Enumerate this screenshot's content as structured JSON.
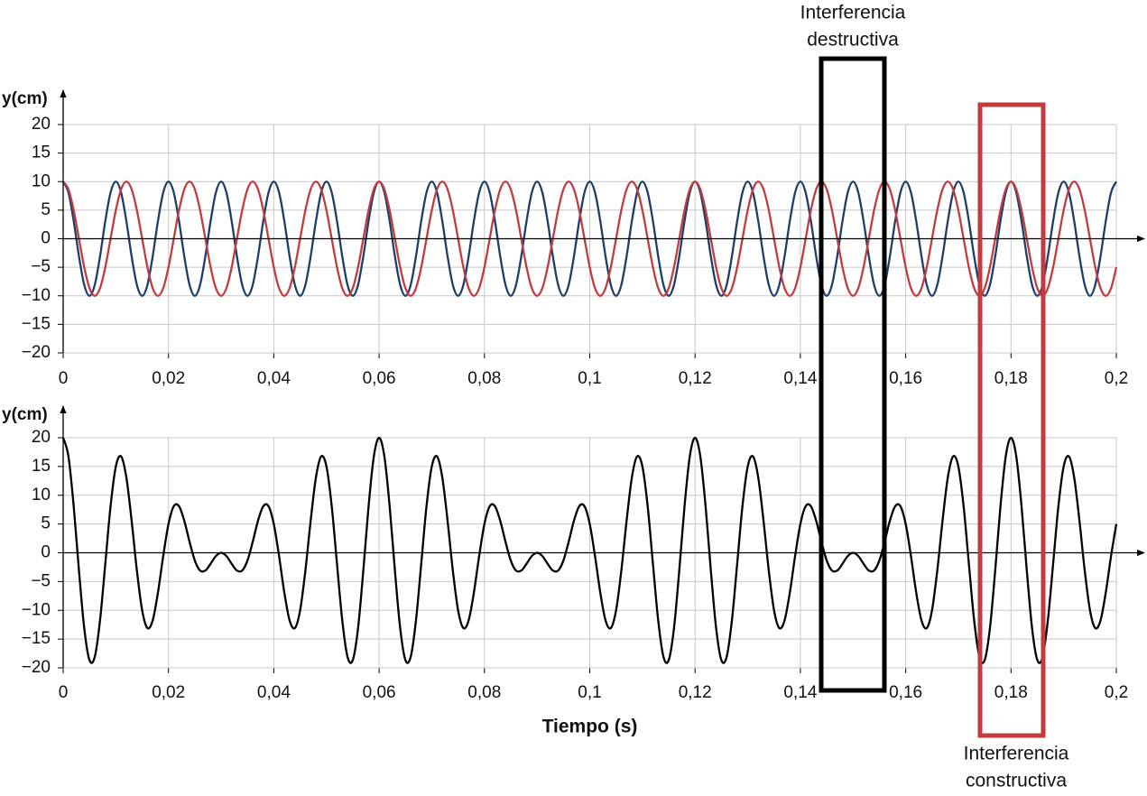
{
  "chart_data": [
    {
      "type": "line",
      "ylabel": "y(cm)",
      "x": [
        0,
        0.001,
        0.002,
        0.003,
        0.004,
        0.005,
        0.006,
        0.007,
        0.008,
        0.009,
        0.01,
        0.011,
        0.012,
        0.013,
        0.014,
        0.015,
        0.016,
        0.017,
        0.018,
        0.019,
        0.02,
        0.021,
        0.022,
        0.023,
        0.024,
        0.025,
        0.026,
        0.027,
        0.028,
        0.029,
        0.03,
        0.031,
        0.032,
        0.033,
        0.034,
        0.035,
        0.036,
        0.037,
        0.038,
        0.039,
        0.04,
        0.041,
        0.042,
        0.043,
        0.044,
        0.045,
        0.046,
        0.047,
        0.048,
        0.049,
        0.05,
        0.051,
        0.052,
        0.053,
        0.054,
        0.055,
        0.056,
        0.057,
        0.058,
        0.059,
        0.06,
        0.061,
        0.062,
        0.063,
        0.064,
        0.065,
        0.066,
        0.067,
        0.068,
        0.069,
        0.07,
        0.071,
        0.072,
        0.073,
        0.074,
        0.075,
        0.076,
        0.077,
        0.078,
        0.079,
        0.08,
        0.081,
        0.082,
        0.083,
        0.084,
        0.085,
        0.086,
        0.087,
        0.088,
        0.089,
        0.09,
        0.091,
        0.092,
        0.093,
        0.094,
        0.095,
        0.096,
        0.097,
        0.098,
        0.099,
        0.1,
        0.101,
        0.102,
        0.103,
        0.104,
        0.105,
        0.106,
        0.107,
        0.108,
        0.109,
        0.11,
        0.111,
        0.112,
        0.113,
        0.114,
        0.115,
        0.116,
        0.117,
        0.118,
        0.119,
        0.12,
        0.121,
        0.122,
        0.123,
        0.124,
        0.125,
        0.126,
        0.127,
        0.128,
        0.129,
        0.13,
        0.131,
        0.132,
        0.133,
        0.134,
        0.135,
        0.136,
        0.137,
        0.138,
        0.139,
        0.14,
        0.141,
        0.142,
        0.143,
        0.144,
        0.145,
        0.146,
        0.147,
        0.148,
        0.149,
        0.15,
        0.151,
        0.152,
        0.153,
        0.154,
        0.155,
        0.156,
        0.157,
        0.158,
        0.159,
        0.16,
        0.161,
        0.162,
        0.163,
        0.164,
        0.165,
        0.166,
        0.167,
        0.168,
        0.169,
        0.17,
        0.171,
        0.172,
        0.173,
        0.174,
        0.175,
        0.176,
        0.177,
        0.178,
        0.179,
        0.18,
        0.181,
        0.182,
        0.183,
        0.184,
        0.185,
        0.186,
        0.187,
        0.188,
        0.189,
        0.19,
        0.191,
        0.192,
        0.193,
        0.194,
        0.195,
        0.196,
        0.197,
        0.198,
        0.199,
        0.2
      ],
      "series": [
        {
          "color": "#1f3d6b",
          "values": [
            10,
            8.09,
            3.09,
            -3.09,
            -8.09,
            -10,
            -8.09,
            -3.09,
            3.09,
            8.09,
            10,
            8.09,
            3.09,
            -3.09,
            -8.09,
            -10,
            -8.09,
            -3.09,
            3.09,
            8.09,
            10,
            8.09,
            3.09,
            -3.09,
            -8.09,
            -10,
            -8.09,
            -3.09,
            3.09,
            8.09,
            10,
            8.09,
            3.09,
            -3.09,
            -8.09,
            -10,
            -8.09,
            -3.09,
            3.09,
            8.09,
            10,
            8.09,
            3.09,
            -3.09,
            -8.09,
            -10,
            -8.09,
            -3.09,
            3.09,
            8.09,
            10,
            8.09,
            3.09,
            -3.09,
            -8.09,
            -10,
            -8.09,
            -3.09,
            3.09,
            8.09,
            10,
            8.09,
            3.09,
            -3.09,
            -8.09,
            -10,
            -8.09,
            -3.09,
            3.09,
            8.09,
            10,
            8.09,
            3.09,
            -3.09,
            -8.09,
            -10,
            -8.09,
            -3.09,
            3.09,
            8.09,
            10,
            8.09,
            3.09,
            -3.09,
            -8.09,
            -10,
            -8.09,
            -3.09,
            3.09,
            8.09,
            10,
            8.09,
            3.09,
            -3.09,
            -8.09,
            -10,
            -8.09,
            -3.09,
            3.09,
            8.09,
            10,
            8.09,
            3.09,
            -3.09,
            -8.09,
            -10,
            -8.09,
            -3.09,
            3.09,
            8.09,
            10,
            8.09,
            3.09,
            -3.09,
            -8.09,
            -10,
            -8.09,
            -3.09,
            3.09,
            8.09,
            10,
            8.09,
            3.09,
            -3.09,
            -8.09,
            -10,
            -8.09,
            -3.09,
            3.09,
            8.09,
            10,
            8.09,
            3.09,
            -3.09,
            -8.09,
            -10,
            -8.09,
            -3.09,
            3.09,
            8.09,
            10,
            8.09,
            3.09,
            -3.09,
            -8.09,
            -10,
            -8.09,
            -3.09,
            3.09,
            8.09,
            10,
            8.09,
            3.09,
            -3.09,
            -8.09,
            -10,
            -8.09,
            -3.09,
            3.09,
            8.09,
            10,
            8.09,
            3.09,
            -3.09,
            -8.09,
            -10,
            -8.09,
            -3.09,
            3.09,
            8.09,
            10,
            8.09,
            3.09,
            -3.09,
            -8.09,
            -10,
            -8.09,
            -3.09,
            3.09,
            8.09,
            10,
            8.09,
            3.09,
            -3.09,
            -8.09,
            -10,
            -8.09,
            -3.09,
            3.09,
            8.09,
            10,
            8.09,
            3.09,
            -3.09,
            -8.09,
            -10,
            -8.09,
            -3.09,
            3.09,
            8.09,
            10
          ]
        },
        {
          "color": "#c23b3f",
          "values": [
            10,
            8.66,
            5,
            0,
            -5,
            -8.66,
            -10,
            -8.66,
            -5,
            0,
            5,
            8.66,
            10,
            8.66,
            5,
            0,
            -5,
            -8.66,
            -10,
            -8.66,
            -5,
            0,
            5,
            8.66,
            10,
            8.66,
            5,
            0,
            -5,
            -8.66,
            -10,
            -8.66,
            -5,
            0,
            5,
            8.66,
            10,
            8.66,
            5,
            0,
            -5,
            -8.66,
            -10,
            -8.66,
            -5,
            0,
            5,
            8.66,
            10,
            8.66,
            5,
            0,
            -5,
            -8.66,
            -10,
            -8.66,
            -5,
            0,
            5,
            8.66,
            10,
            8.66,
            5,
            0,
            -5,
            -8.66,
            -10,
            -8.66,
            -5,
            0,
            5,
            8.66,
            10,
            8.66,
            5,
            0,
            -5,
            -8.66,
            -10,
            -8.66,
            -5,
            0,
            5,
            8.66,
            10,
            8.66,
            5,
            0,
            -5,
            -8.66,
            -10,
            -8.66,
            -5,
            0,
            5,
            8.66,
            10,
            8.66,
            5,
            0,
            -5,
            -8.66,
            -10,
            -8.66,
            -5,
            0,
            5,
            8.66,
            10,
            8.66,
            5,
            0,
            -5,
            -8.66,
            -10,
            -8.66,
            -5,
            0,
            5,
            8.66,
            10,
            8.66,
            5,
            0,
            -5,
            -8.66,
            -10,
            -8.66,
            -5,
            0,
            5,
            8.66,
            10,
            8.66,
            5,
            0,
            -5,
            -8.66,
            -10,
            -8.66,
            -5,
            0,
            5,
            8.66,
            10,
            8.66,
            5,
            0,
            -5,
            -8.66,
            -10,
            -8.66,
            -5,
            0,
            5,
            8.66,
            10,
            8.66,
            5,
            0,
            -5,
            -8.66,
            -10,
            -8.66,
            -5,
            0,
            5,
            8.66,
            10,
            8.66,
            5,
            0,
            -5,
            -8.66,
            -10,
            -8.66,
            -5,
            0,
            5,
            8.66,
            10,
            8.66,
            5,
            0,
            -5,
            -8.66,
            -10,
            -8.66,
            -5,
            0,
            5,
            8.66,
            10,
            8.66,
            5,
            0,
            -5,
            -8.66,
            -10,
            -8.66,
            -5
          ]
        }
      ],
      "xlim": [
        0,
        0.2
      ],
      "ylim": [
        -20,
        20
      ],
      "grid": true,
      "xticks": [
        0,
        {
          "value": 0.02,
          "label": "0,02"
        },
        {
          "value": 0.04,
          "label": "0,04"
        },
        {
          "value": 0.06,
          "label": "0,06"
        },
        {
          "value": 0.08,
          "label": "0,08"
        },
        {
          "value": 0.1,
          "label": "0,1"
        },
        {
          "value": 0.12,
          "label": "0,12"
        },
        {
          "value": 0.14,
          "label": "0,14"
        },
        {
          "value": 0.16,
          "label": "0,16"
        },
        {
          "value": 0.18,
          "label": "0,18"
        },
        {
          "value": 0.2,
          "label": "0,2"
        }
      ],
      "yticks": [
        {
          "value": -20,
          "label": "−20"
        },
        {
          "value": -15,
          "label": "−15"
        },
        {
          "value": -10,
          "label": "−10"
        },
        {
          "value": -5,
          "label": "−5"
        },
        0,
        5,
        10,
        15,
        20
      ]
    },
    {
      "type": "line",
      "ylabel": "y(cm)",
      "xlabel": "Tiempo (s)",
      "x": [
        0,
        0.001,
        0.002,
        0.003,
        0.004,
        0.005,
        0.006,
        0.007,
        0.008,
        0.009,
        0.01,
        0.011,
        0.012,
        0.013,
        0.014,
        0.015,
        0.016,
        0.017,
        0.018,
        0.019,
        0.02,
        0.021,
        0.022,
        0.023,
        0.024,
        0.025,
        0.026,
        0.027,
        0.028,
        0.029,
        0.03,
        0.031,
        0.032,
        0.033,
        0.034,
        0.035,
        0.036,
        0.037,
        0.038,
        0.039,
        0.04,
        0.041,
        0.042,
        0.043,
        0.044,
        0.045,
        0.046,
        0.047,
        0.048,
        0.049,
        0.05,
        0.051,
        0.052,
        0.053,
        0.054,
        0.055,
        0.056,
        0.057,
        0.058,
        0.059,
        0.06,
        0.061,
        0.062,
        0.063,
        0.064,
        0.065,
        0.066,
        0.067,
        0.068,
        0.069,
        0.07,
        0.071,
        0.072,
        0.073,
        0.074,
        0.075,
        0.076,
        0.077,
        0.078,
        0.079,
        0.08,
        0.081,
        0.082,
        0.083,
        0.084,
        0.085,
        0.086,
        0.087,
        0.088,
        0.089,
        0.09,
        0.091,
        0.092,
        0.093,
        0.094,
        0.095,
        0.096,
        0.097,
        0.098,
        0.099,
        0.1,
        0.101,
        0.102,
        0.103,
        0.104,
        0.105,
        0.106,
        0.107,
        0.108,
        0.109,
        0.11,
        0.111,
        0.112,
        0.113,
        0.114,
        0.115,
        0.116,
        0.117,
        0.118,
        0.119,
        0.12,
        0.121,
        0.122,
        0.123,
        0.124,
        0.125,
        0.126,
        0.127,
        0.128,
        0.129,
        0.13,
        0.131,
        0.132,
        0.133,
        0.134,
        0.135,
        0.136,
        0.137,
        0.138,
        0.139,
        0.14,
        0.141,
        0.142,
        0.143,
        0.144,
        0.145,
        0.146,
        0.147,
        0.148,
        0.149,
        0.15,
        0.151,
        0.152,
        0.153,
        0.154,
        0.155,
        0.156,
        0.157,
        0.158,
        0.159,
        0.16,
        0.161,
        0.162,
        0.163,
        0.164,
        0.165,
        0.166,
        0.167,
        0.168,
        0.169,
        0.17,
        0.171,
        0.172,
        0.173,
        0.174,
        0.175,
        0.176,
        0.177,
        0.178,
        0.179,
        0.18,
        0.181,
        0.182,
        0.183,
        0.184,
        0.185,
        0.186,
        0.187,
        0.188,
        0.189,
        0.19,
        0.191,
        0.192,
        0.193,
        0.194,
        0.195,
        0.196,
        0.197,
        0.198,
        0.199,
        0.2
      ],
      "series": [
        {
          "color": "#000000",
          "values": [
            20,
            16.75,
            8.09,
            -3.09,
            -13.09,
            -18.66,
            -18.09,
            -11.75,
            -1.91,
            8.09,
            15,
            16.75,
            13.09,
            5.57,
            -3.09,
            -10,
            -13.09,
            -11.75,
            -6.91,
            -0.57,
            5,
            8.09,
            8.09,
            5.57,
            1.91,
            -1.34,
            -3.09,
            -3.09,
            -1.91,
            -0.57,
            0,
            -0.57,
            -1.91,
            -3.09,
            -3.09,
            -1.34,
            1.91,
            5.57,
            8.09,
            8.09,
            5,
            -0.57,
            -6.91,
            -11.75,
            -13.09,
            -10,
            -3.09,
            5.57,
            13.09,
            16.75,
            15,
            8.09,
            -1.91,
            -11.75,
            -18.09,
            -18.66,
            -13.09,
            -3.09,
            8.09,
            16.75,
            20,
            16.75,
            8.09,
            -3.09,
            -13.09,
            -18.66,
            -18.09,
            -11.75,
            -1.91,
            8.09,
            15,
            16.75,
            13.09,
            5.57,
            -3.09,
            -10,
            -13.09,
            -11.75,
            -6.91,
            -0.57,
            5,
            8.09,
            8.09,
            5.57,
            1.91,
            -1.34,
            -3.09,
            -3.09,
            -1.91,
            -0.57,
            0,
            -0.57,
            -1.91,
            -3.09,
            -3.09,
            -1.34,
            1.91,
            5.57,
            8.09,
            8.09,
            5,
            -0.57,
            -6.91,
            -11.75,
            -13.09,
            -10,
            -3.09,
            5.57,
            13.09,
            16.75,
            15,
            8.09,
            -1.91,
            -11.75,
            -18.09,
            -18.66,
            -13.09,
            -3.09,
            8.09,
            16.75,
            20,
            16.75,
            8.09,
            -3.09,
            -13.09,
            -18.66,
            -18.09,
            -11.75,
            -1.91,
            8.09,
            15,
            16.75,
            13.09,
            5.57,
            -3.09,
            -10,
            -13.09,
            -11.75,
            -6.91,
            -0.57,
            5,
            8.09,
            8.09,
            5.57,
            1.91,
            -1.34,
            -3.09,
            -3.09,
            -1.91,
            -0.57,
            0,
            -0.57,
            -1.91,
            -3.09,
            -3.09,
            -1.34,
            1.91,
            5.57,
            8.09,
            8.09,
            5,
            -0.57,
            -6.91,
            -11.75,
            -13.09,
            -10,
            -3.09,
            5.57,
            13.09,
            16.75,
            15,
            8.09,
            -1.91,
            -11.75,
            -18.09,
            -18.66,
            -13.09,
            -3.09,
            8.09,
            16.75,
            20,
            16.75,
            8.09,
            -3.09,
            -13.09,
            -18.66,
            -18.09,
            -11.75,
            -1.91,
            8.09,
            15,
            16.75,
            13.09,
            5.57,
            -3.09,
            -10,
            -13.09,
            -11.75,
            -6.91,
            -0.57,
            5
          ]
        }
      ],
      "xlim": [
        0,
        0.2
      ],
      "ylim": [
        -20,
        20
      ],
      "grid": true,
      "xticks": [
        0,
        {
          "value": 0.02,
          "label": "0,02"
        },
        {
          "value": 0.04,
          "label": "0,04"
        },
        {
          "value": 0.06,
          "label": "0,06"
        },
        {
          "value": 0.08,
          "label": "0,08"
        },
        {
          "value": 0.1,
          "label": "0,1"
        },
        {
          "value": 0.12,
          "label": "0,12"
        },
        {
          "value": 0.14,
          "label": "0,14"
        },
        {
          "value": 0.16,
          "label": "0,16"
        },
        {
          "value": 0.18,
          "label": "0,18"
        },
        {
          "value": 0.2,
          "label": "0,2"
        }
      ],
      "yticks": [
        {
          "value": -20,
          "label": "−20"
        },
        {
          "value": -15,
          "label": "−15"
        },
        {
          "value": -10,
          "label": "−10"
        },
        {
          "value": -5,
          "label": "−5"
        },
        0,
        5,
        10,
        15,
        20
      ]
    }
  ],
  "annotations": [
    {
      "lines": [
        "Interferencia",
        "destructiva"
      ]
    },
    {
      "lines": [
        "Interferencia",
        "constructiva"
      ]
    }
  ]
}
